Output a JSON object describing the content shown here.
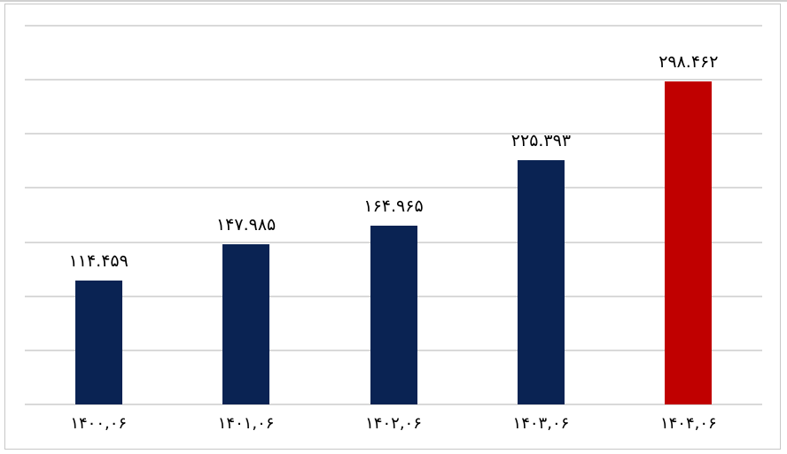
{
  "screen": {
    "background": "#ffffff",
    "top_edge_color": "#d0d0d0"
  },
  "chart_frame": {
    "border_color": "#c7c7c7",
    "background": "#ffffff"
  },
  "chart_data": {
    "type": "bar",
    "title": "",
    "xlabel": "",
    "ylabel": "",
    "categories": [
      "۱۴۰۰,۰۶",
      "۱۴۰۱,۰۶",
      "۱۴۰۲,۰۶",
      "۱۴۰۳,۰۶",
      "۱۴۰۴,۰۶"
    ],
    "values": [
      114459,
      147985,
      164965,
      225393,
      298462
    ],
    "data_labels": [
      "۱۱۴.۴۵۹",
      "۱۴۷.۹۸۵",
      "۱۶۴.۹۶۵",
      "۲۲۵.۳۹۳",
      "۲۹۸.۴۶۲"
    ],
    "bar_colors": [
      "#0a2353",
      "#0a2353",
      "#0a2353",
      "#0a2353",
      "#c00000"
    ],
    "accent_navy": "#0a2353",
    "accent_red": "#c00000",
    "ylim": [
      0,
      350000
    ],
    "gridline_step": 50000,
    "gridline_color": "#d9d9d9",
    "grid": "horizontal-only",
    "legend_position": "none",
    "y_axis_tick_labels_visible": false,
    "data_label_position": "above-bar"
  }
}
